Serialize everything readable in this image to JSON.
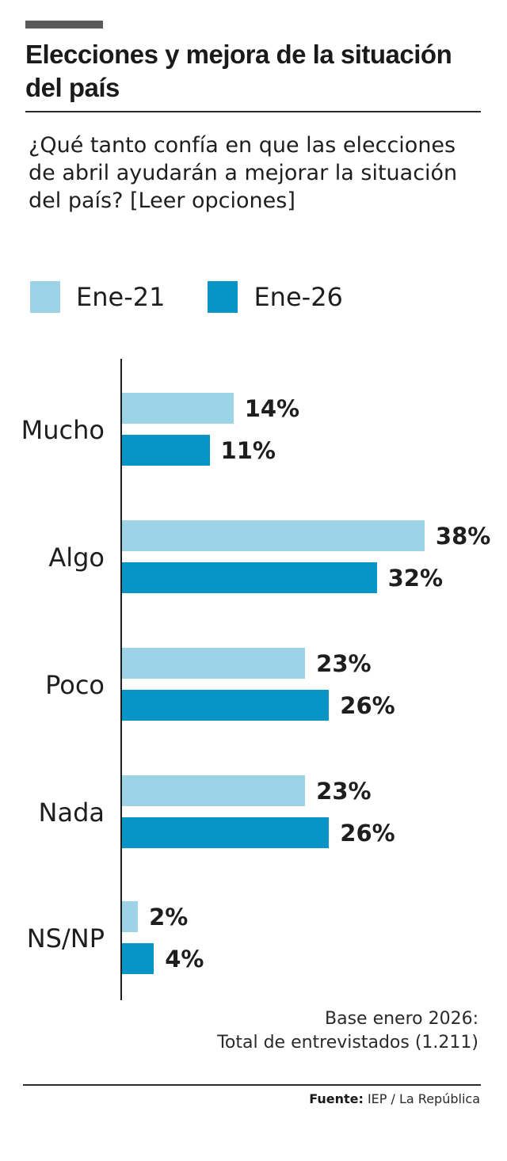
{
  "header": {
    "title": "Elecciones y mejora de la situación del país",
    "question": "¿Qué tanto confía en que las elecciones de abril ayudarán a mejorar la situación del país? [Leer opciones]"
  },
  "legend": [
    {
      "label": "Ene-21",
      "color": "#9dd3e6"
    },
    {
      "label": "Ene-26",
      "color": "#0894c4"
    }
  ],
  "groups": [
    {
      "label": "Mucho",
      "v1": 14,
      "v2": 11,
      "t1": "14%",
      "t2": "11%"
    },
    {
      "label": "Algo",
      "v1": 38,
      "v2": 32,
      "t1": "38%",
      "t2": "32%"
    },
    {
      "label": "Poco",
      "v1": 23,
      "v2": 26,
      "t1": "23%",
      "t2": "26%"
    },
    {
      "label": "Nada",
      "v1": 23,
      "v2": 26,
      "t1": "23%",
      "t2": "26%"
    },
    {
      "label": "NS/NP",
      "v1": 2,
      "v2": 4,
      "t1": "2%",
      "t2": "4%"
    }
  ],
  "footer": {
    "note_line1": "Base enero 2026:",
    "note_line2": "Total de entrevistados (1.211)",
    "source_label": "Fuente:",
    "source_text": " IEP / La República"
  },
  "chart_data": {
    "type": "bar",
    "orientation": "horizontal",
    "title": "Elecciones y mejora de la situación del país",
    "subtitle": "¿Qué tanto confía en que las elecciones de abril ayudarán a mejorar la situación del país? [Leer opciones]",
    "categories": [
      "Mucho",
      "Algo",
      "Poco",
      "Nada",
      "NS/NP"
    ],
    "series": [
      {
        "name": "Ene-21",
        "values": [
          14,
          38,
          23,
          23,
          2
        ],
        "color": "#9dd3e6"
      },
      {
        "name": "Ene-26",
        "values": [
          11,
          32,
          26,
          26,
          4
        ],
        "color": "#0894c4"
      }
    ],
    "xlabel": "",
    "ylabel": "",
    "unit": "%",
    "legend_position": "top",
    "grid": false,
    "annotations": [
      "Base enero 2026: Total de entrevistados (1.211)",
      "Fuente: IEP / La República"
    ]
  }
}
